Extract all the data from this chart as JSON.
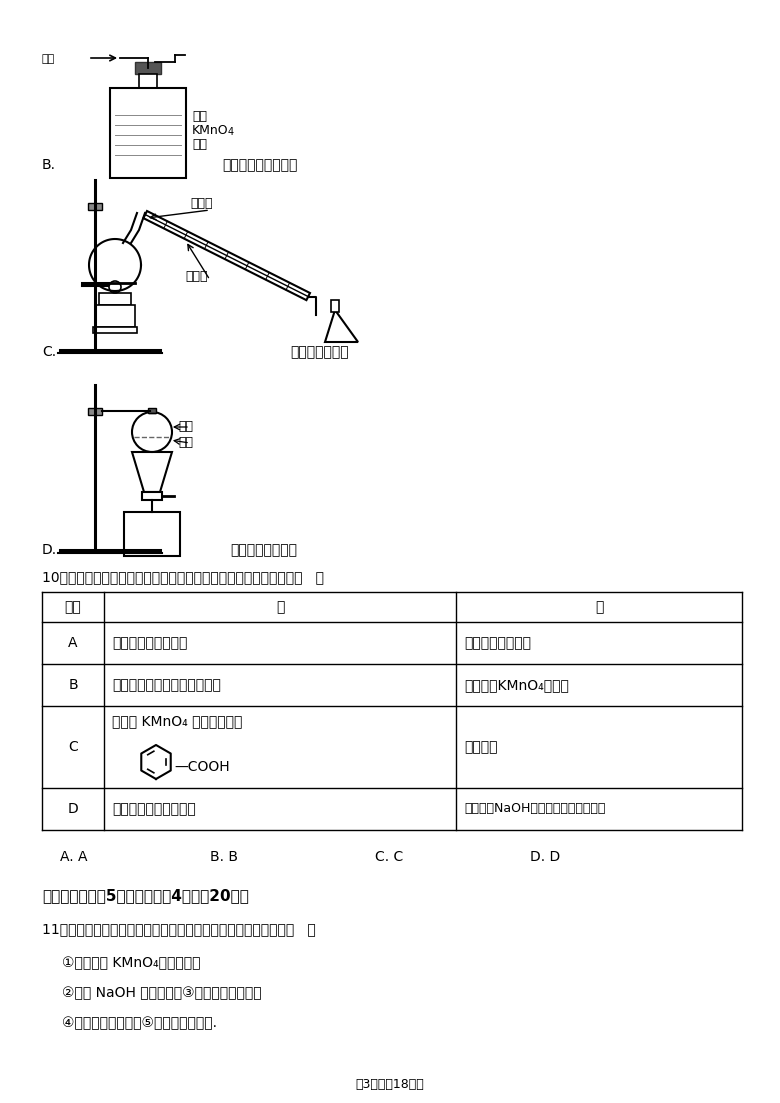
{
  "bg_color": "#ffffff",
  "text_color": "#000000",
  "page_width": 7.8,
  "page_height": 11.03,
  "dpi": 100,
  "B_label": "B.",
  "B_text": "可除去甲烷中的乙烯",
  "B_gas_label": "气体",
  "B_img_label1": "酸性",
  "B_img_label2": "KMnO",
  "B_img_label3": "4溶液",
  "C_label": "C.",
  "C_text": "用于石油的分馏",
  "C_label1": "进水口",
  "C_label2": "出水口",
  "D_label": "D.",
  "D_text": "用于分离溨苯和水",
  "D_label1": "水层",
  "D_label2": "溨苯",
  "q10_text": "10．下列每个选项的甲、乙两个反应中，属于同一种反应类型的是（   ）",
  "th0": "选项",
  "th1": "甲",
  "th2": "乙",
  "rA0": "A",
  "rA1": "溨乙烷水解制备乙醇",
  "rA2": "乙烯水化制备乙醇",
  "rB0": "B",
  "rB1": "甲烷与氯气反应制备四氯化碳",
  "rB2": "乙烯通入KMnO₄溶液中",
  "rC0": "C",
  "rC1": "甲苯与 KMnO₄ 溶液反应生成",
  "rC2": "苯的燃烧",
  "rD0": "D",
  "rD1": "苯与液溨反应制备溨苯",
  "rD2": "溨乙烷与NaOH的醇溶液反应生成乙烯",
  "opts": [
    "A. A",
    "B. B",
    "C. C",
    "D. D"
  ],
  "sec2_title": "二、选择题（共5小题，每小题4分，满20分）",
  "q11_text": "11．某有机物的结构如图所示，这种有机物不可能具有的性质是（   ）",
  "q11_1": "①能使酸性 KMnO₄溶液褮色；",
  "q11_2": "②能跟 NaOH 溶液反应；③能发生酵化反应；",
  "q11_3": "④能发生加成反应；⑤能发生水解反应.",
  "footer": "第3页（冁18页）"
}
